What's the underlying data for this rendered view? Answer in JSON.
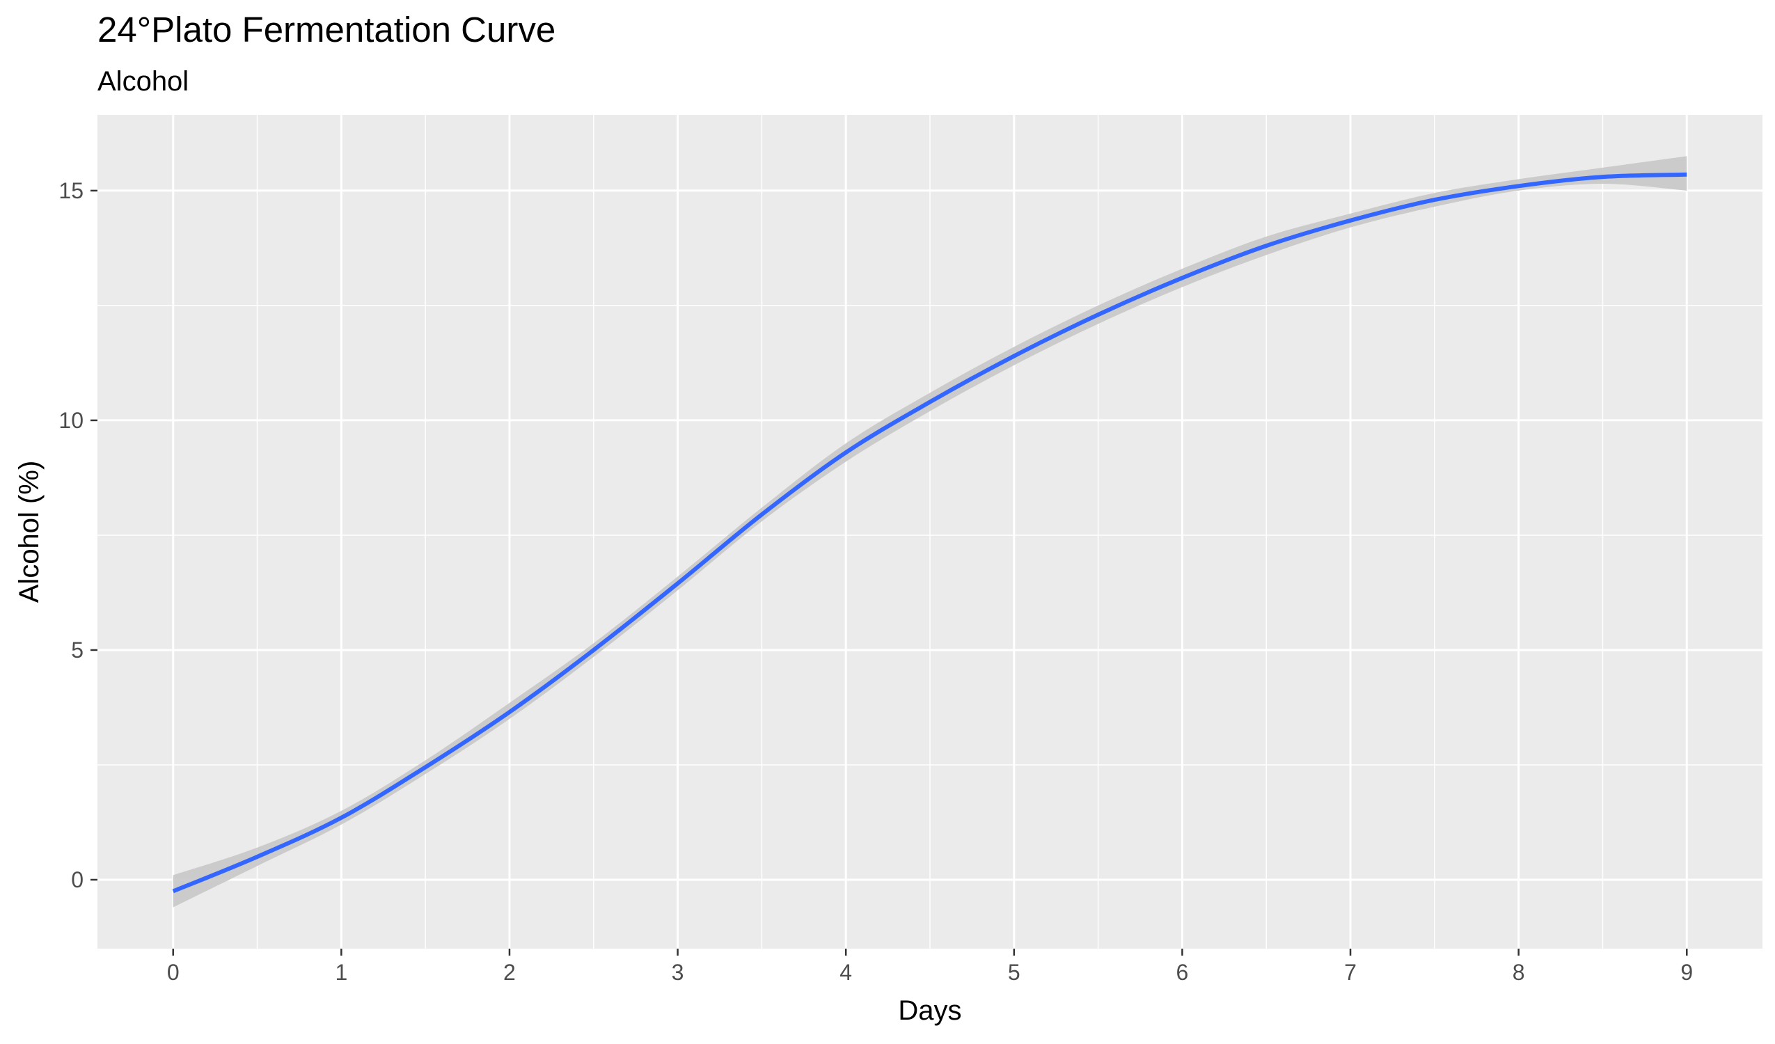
{
  "chart_data": {
    "type": "line",
    "title": "24°Plato Fermentation Curve",
    "subtitle": "Alcohol",
    "xlabel": "Days",
    "ylabel": "Alcohol (%)",
    "xlim": [
      -0.45,
      9.45
    ],
    "ylim": [
      -1.5,
      16.65
    ],
    "x_ticks": [
      0,
      1,
      2,
      3,
      4,
      5,
      6,
      7,
      8,
      9
    ],
    "y_ticks": [
      0,
      5,
      10,
      15
    ],
    "grid": true,
    "legend": "none",
    "colors": {
      "panel_background": "#ebebeb",
      "grid": "#ffffff",
      "line": "#3366ff",
      "ribbon": "#c8c8c8"
    },
    "series": [
      {
        "x": [
          0,
          0.5,
          1,
          1.5,
          2,
          2.5,
          3,
          3.5,
          4,
          4.5,
          5,
          5.5,
          6,
          6.5,
          7,
          7.5,
          8,
          8.5,
          9
        ],
        "y": [
          -0.25,
          0.5,
          1.35,
          2.45,
          3.65,
          5.0,
          6.45,
          7.95,
          9.3,
          10.4,
          11.4,
          12.3,
          13.1,
          13.8,
          14.35,
          14.8,
          15.1,
          15.3,
          15.35
        ],
        "lower": [
          -0.6,
          0.3,
          1.2,
          2.3,
          3.5,
          4.85,
          6.3,
          7.8,
          9.1,
          10.2,
          11.2,
          12.1,
          12.9,
          13.6,
          14.2,
          14.65,
          15.0,
          15.15,
          15.0
        ],
        "upper": [
          0.1,
          0.7,
          1.5,
          2.6,
          3.85,
          5.15,
          6.6,
          8.1,
          9.5,
          10.6,
          11.6,
          12.5,
          13.3,
          14.0,
          14.5,
          14.95,
          15.25,
          15.5,
          15.75
        ]
      }
    ]
  }
}
